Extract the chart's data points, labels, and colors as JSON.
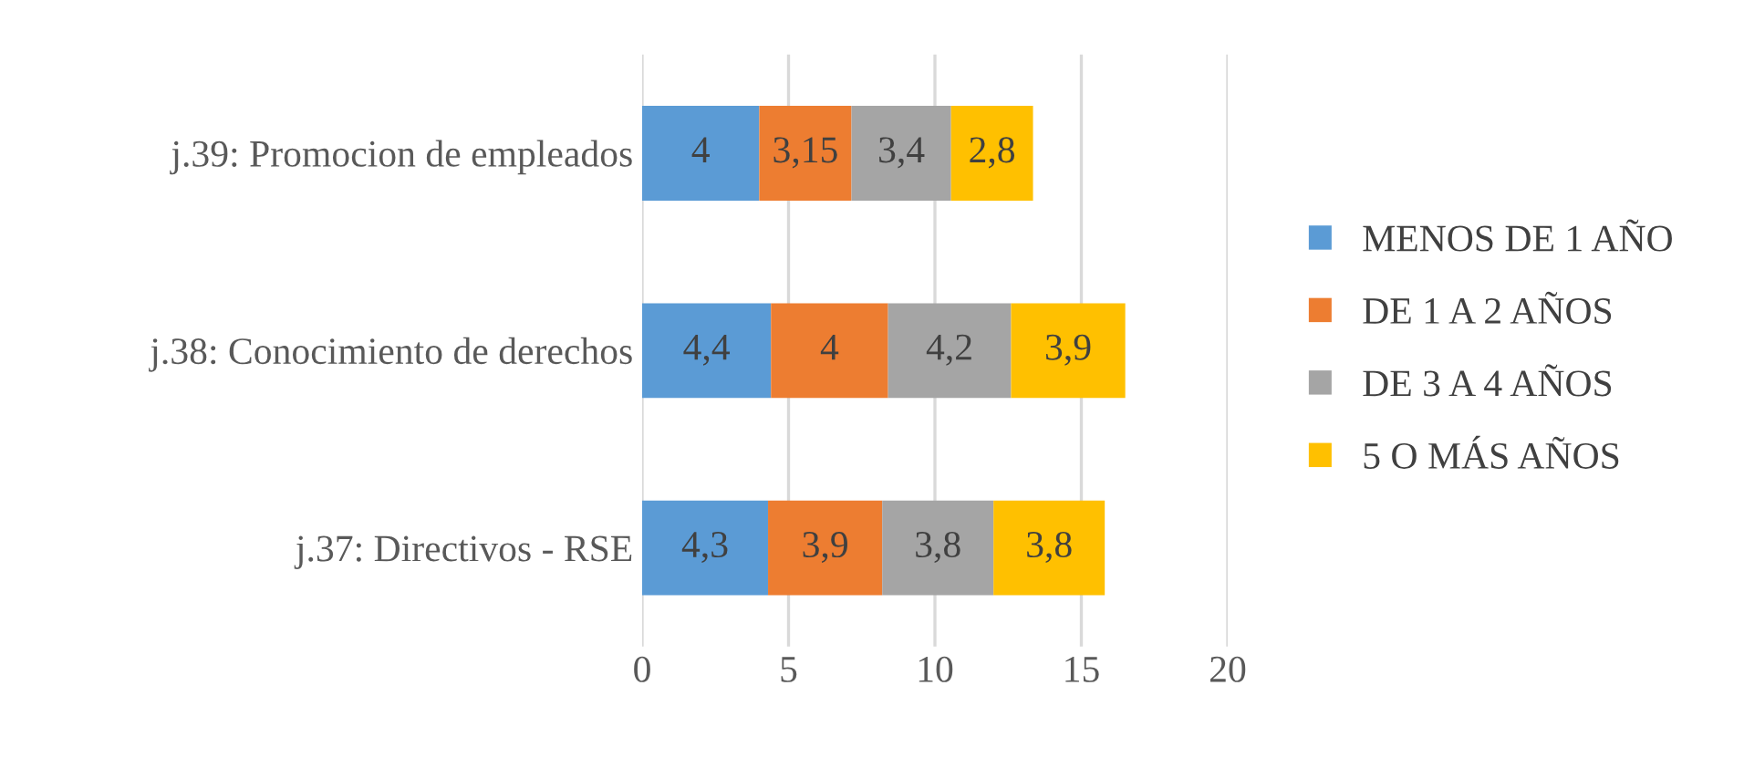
{
  "chart_data": {
    "type": "bar",
    "orientation": "horizontal",
    "stacked": true,
    "categories": [
      "j.39: Promocion de empleados",
      "j.38: Conocimiento de derechos",
      "j.37: Directivos - RSE"
    ],
    "series": [
      {
        "name": "MENOS DE 1 AÑO",
        "color": "#5b9bd5",
        "values": [
          4,
          4.4,
          4.3
        ],
        "value_labels": [
          "4",
          "4,4",
          "4,3"
        ]
      },
      {
        "name": "DE 1 A 2 AÑOS",
        "color": "#ed7d31",
        "values": [
          3.15,
          4,
          3.9
        ],
        "value_labels": [
          "3,15",
          "4",
          "3,9"
        ]
      },
      {
        "name": "DE 3 A 4 AÑOS",
        "color": "#a5a5a5",
        "values": [
          3.4,
          4.2,
          3.8
        ],
        "value_labels": [
          "3,4",
          "4,2",
          "3,8"
        ]
      },
      {
        "name": "5 O MÁS AÑOS",
        "color": "#ffc000",
        "values": [
          2.8,
          3.9,
          3.8
        ],
        "value_labels": [
          "2,8",
          "3,9",
          "3,8"
        ]
      }
    ],
    "xlim": [
      0,
      20
    ],
    "xticks": [
      0,
      5,
      10,
      15,
      20
    ],
    "grid": "x",
    "legend": "right"
  }
}
